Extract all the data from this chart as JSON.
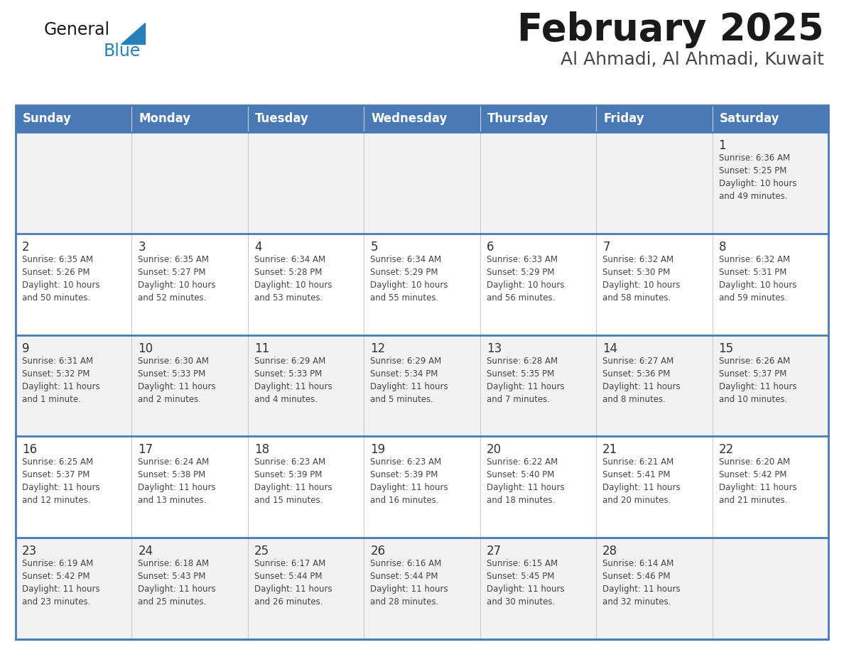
{
  "title": "February 2025",
  "subtitle": "Al Ahmadi, Al Ahmadi, Kuwait",
  "header_bg_color": "#4a7ab5",
  "header_text_color": "#ffffff",
  "day_names": [
    "Sunday",
    "Monday",
    "Tuesday",
    "Wednesday",
    "Thursday",
    "Friday",
    "Saturday"
  ],
  "row_colors": [
    "#f2f2f2",
    "#ffffff"
  ],
  "border_color": "#4a7ab5",
  "cell_border_color": "#aaaaaa",
  "text_color": "#444444",
  "day_num_color": "#333333",
  "title_color": "#1a1a1a",
  "subtitle_color": "#444444",
  "logo_general_color": "#1a1a1a",
  "logo_blue_color": "#2980b9",
  "logo_triangle_color": "#2980b9",
  "calendar": [
    [
      {
        "day": 0,
        "info": ""
      },
      {
        "day": 0,
        "info": ""
      },
      {
        "day": 0,
        "info": ""
      },
      {
        "day": 0,
        "info": ""
      },
      {
        "day": 0,
        "info": ""
      },
      {
        "day": 0,
        "info": ""
      },
      {
        "day": 1,
        "info": "Sunrise: 6:36 AM\nSunset: 5:25 PM\nDaylight: 10 hours\nand 49 minutes."
      }
    ],
    [
      {
        "day": 2,
        "info": "Sunrise: 6:35 AM\nSunset: 5:26 PM\nDaylight: 10 hours\nand 50 minutes."
      },
      {
        "day": 3,
        "info": "Sunrise: 6:35 AM\nSunset: 5:27 PM\nDaylight: 10 hours\nand 52 minutes."
      },
      {
        "day": 4,
        "info": "Sunrise: 6:34 AM\nSunset: 5:28 PM\nDaylight: 10 hours\nand 53 minutes."
      },
      {
        "day": 5,
        "info": "Sunrise: 6:34 AM\nSunset: 5:29 PM\nDaylight: 10 hours\nand 55 minutes."
      },
      {
        "day": 6,
        "info": "Sunrise: 6:33 AM\nSunset: 5:29 PM\nDaylight: 10 hours\nand 56 minutes."
      },
      {
        "day": 7,
        "info": "Sunrise: 6:32 AM\nSunset: 5:30 PM\nDaylight: 10 hours\nand 58 minutes."
      },
      {
        "day": 8,
        "info": "Sunrise: 6:32 AM\nSunset: 5:31 PM\nDaylight: 10 hours\nand 59 minutes."
      }
    ],
    [
      {
        "day": 9,
        "info": "Sunrise: 6:31 AM\nSunset: 5:32 PM\nDaylight: 11 hours\nand 1 minute."
      },
      {
        "day": 10,
        "info": "Sunrise: 6:30 AM\nSunset: 5:33 PM\nDaylight: 11 hours\nand 2 minutes."
      },
      {
        "day": 11,
        "info": "Sunrise: 6:29 AM\nSunset: 5:33 PM\nDaylight: 11 hours\nand 4 minutes."
      },
      {
        "day": 12,
        "info": "Sunrise: 6:29 AM\nSunset: 5:34 PM\nDaylight: 11 hours\nand 5 minutes."
      },
      {
        "day": 13,
        "info": "Sunrise: 6:28 AM\nSunset: 5:35 PM\nDaylight: 11 hours\nand 7 minutes."
      },
      {
        "day": 14,
        "info": "Sunrise: 6:27 AM\nSunset: 5:36 PM\nDaylight: 11 hours\nand 8 minutes."
      },
      {
        "day": 15,
        "info": "Sunrise: 6:26 AM\nSunset: 5:37 PM\nDaylight: 11 hours\nand 10 minutes."
      }
    ],
    [
      {
        "day": 16,
        "info": "Sunrise: 6:25 AM\nSunset: 5:37 PM\nDaylight: 11 hours\nand 12 minutes."
      },
      {
        "day": 17,
        "info": "Sunrise: 6:24 AM\nSunset: 5:38 PM\nDaylight: 11 hours\nand 13 minutes."
      },
      {
        "day": 18,
        "info": "Sunrise: 6:23 AM\nSunset: 5:39 PM\nDaylight: 11 hours\nand 15 minutes."
      },
      {
        "day": 19,
        "info": "Sunrise: 6:23 AM\nSunset: 5:39 PM\nDaylight: 11 hours\nand 16 minutes."
      },
      {
        "day": 20,
        "info": "Sunrise: 6:22 AM\nSunset: 5:40 PM\nDaylight: 11 hours\nand 18 minutes."
      },
      {
        "day": 21,
        "info": "Sunrise: 6:21 AM\nSunset: 5:41 PM\nDaylight: 11 hours\nand 20 minutes."
      },
      {
        "day": 22,
        "info": "Sunrise: 6:20 AM\nSunset: 5:42 PM\nDaylight: 11 hours\nand 21 minutes."
      }
    ],
    [
      {
        "day": 23,
        "info": "Sunrise: 6:19 AM\nSunset: 5:42 PM\nDaylight: 11 hours\nand 23 minutes."
      },
      {
        "day": 24,
        "info": "Sunrise: 6:18 AM\nSunset: 5:43 PM\nDaylight: 11 hours\nand 25 minutes."
      },
      {
        "day": 25,
        "info": "Sunrise: 6:17 AM\nSunset: 5:44 PM\nDaylight: 11 hours\nand 26 minutes."
      },
      {
        "day": 26,
        "info": "Sunrise: 6:16 AM\nSunset: 5:44 PM\nDaylight: 11 hours\nand 28 minutes."
      },
      {
        "day": 27,
        "info": "Sunrise: 6:15 AM\nSunset: 5:45 PM\nDaylight: 11 hours\nand 30 minutes."
      },
      {
        "day": 28,
        "info": "Sunrise: 6:14 AM\nSunset: 5:46 PM\nDaylight: 11 hours\nand 32 minutes."
      },
      {
        "day": 0,
        "info": ""
      }
    ]
  ]
}
